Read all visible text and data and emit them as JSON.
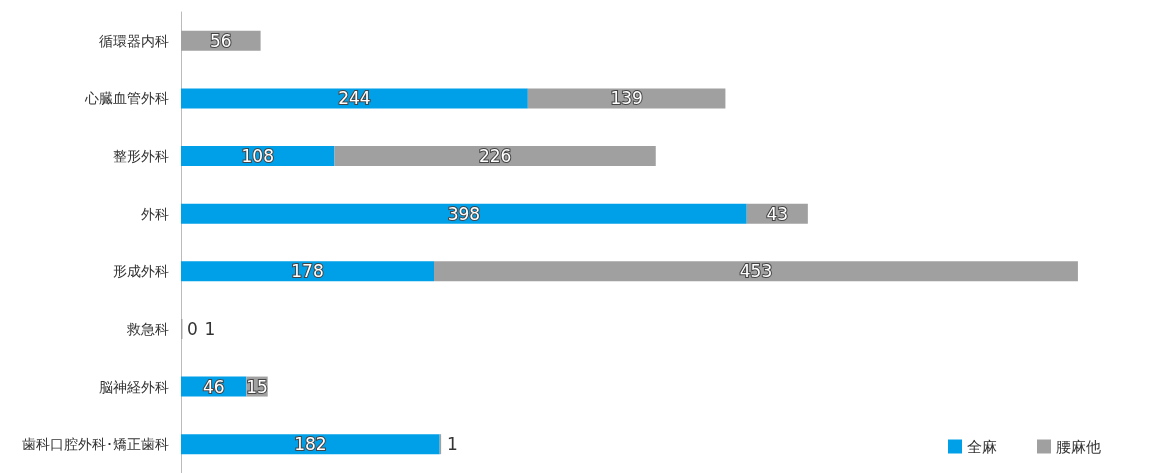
{
  "chart_data": {
    "type": "bar",
    "orientation": "horizontal",
    "stacked": true,
    "data_labels": true,
    "legend": "bottom right",
    "grid": false,
    "categories": [
      "循環器内科",
      "心臓血管外科",
      "整形外科",
      "外科",
      "形成外科",
      "救急科",
      "脳神経外科",
      "歯科口腔外科･矯正歯科"
    ],
    "series": [
      {
        "name": "全麻",
        "color": "#00a0e9",
        "values": [
          null,
          244,
          108,
          398,
          178,
          0,
          46,
          182
        ]
      },
      {
        "name": "腰麻他",
        "color": "#a0a0a0",
        "values": [
          56,
          139,
          226,
          43,
          453,
          1,
          15,
          1
        ]
      }
    ]
  }
}
